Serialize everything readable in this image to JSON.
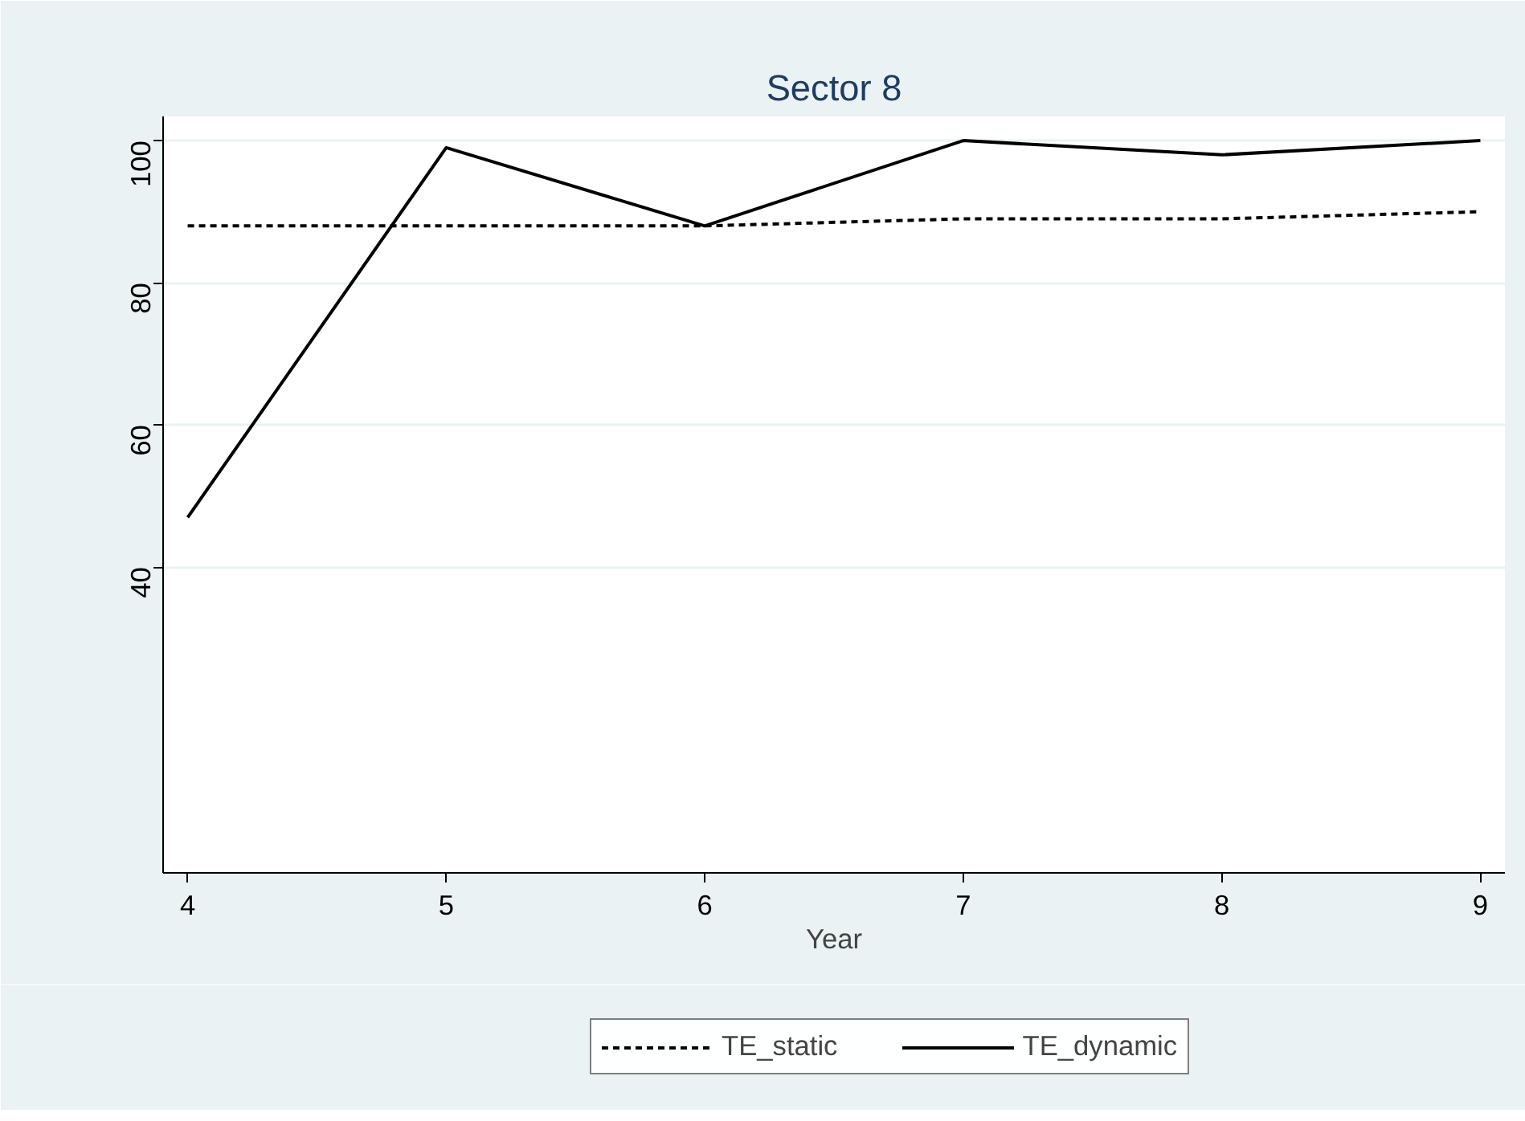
{
  "chart_data": {
    "type": "line",
    "title": "Sector 8",
    "xlabel": "Year",
    "x": [
      4,
      5,
      6,
      7,
      8,
      9
    ],
    "series": [
      {
        "name": "TE_static",
        "color": "#000000",
        "line_style": "dashed",
        "values": [
          88,
          88,
          88,
          89,
          89,
          90
        ]
      },
      {
        "name": "TE_dynamic",
        "color": "#000000",
        "line_style": "solid",
        "values": [
          47,
          99,
          88,
          100,
          98,
          100
        ]
      }
    ],
    "xlim": [
      3.905,
      9.095
    ],
    "ylim": [
      -3,
      103.4
    ],
    "xticks": [
      4,
      5,
      6,
      7,
      8,
      9
    ],
    "yticks": [
      40,
      60,
      80,
      100
    ],
    "grid": "y",
    "legend": "bottom",
    "marker": "none"
  }
}
